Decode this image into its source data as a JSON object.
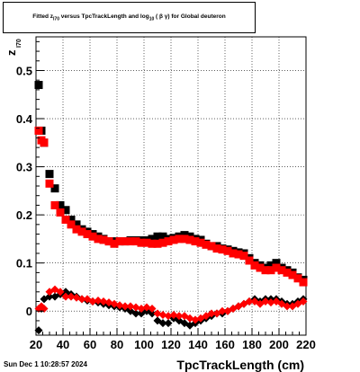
{
  "title": {
    "prefix": "Fitted  z",
    "prefix_sub": "I70",
    "middle": "  versus TpcTrackLength and log",
    "middle_sub": "10",
    "suffix": " ( β γ) for Global deuteron"
  },
  "stamp": "Sun Dec  1 10:28:57 2024",
  "colors": {
    "series_black": "#000000",
    "series_red": "#ff0000",
    "grid": "#000000"
  },
  "chart_data": {
    "type": "scatter",
    "xlabel": "TpcTrackLength (cm)",
    "ylabel_main": "z",
    "ylabel_sub": "I70",
    "xlim": [
      20,
      220
    ],
    "ylim": [
      -0.05,
      0.57
    ],
    "xticks": [
      20,
      40,
      60,
      80,
      100,
      120,
      140,
      160,
      180,
      200,
      220
    ],
    "yticks": [
      0,
      0.1,
      0.2,
      0.3,
      0.4,
      0.5
    ],
    "ytick_labels": [
      "0",
      "0.1",
      "0.2",
      "0.3",
      "0.4",
      "0.5"
    ],
    "grid": true,
    "series": [
      {
        "marker": "square",
        "color": "black",
        "x": [
          22,
          24,
          26,
          30,
          34,
          38,
          42,
          46,
          50,
          54,
          58,
          62,
          66,
          70,
          74,
          78,
          82,
          86,
          90,
          94,
          98,
          102,
          106,
          110,
          114,
          118,
          122,
          126,
          130,
          134,
          138,
          142,
          146,
          150,
          154,
          158,
          162,
          166,
          170,
          174,
          178,
          182,
          186,
          190,
          194,
          198,
          202,
          206,
          210,
          214,
          218
        ],
        "y": [
          0.47,
          0.375,
          0.35,
          0.285,
          0.255,
          0.22,
          0.21,
          0.19,
          0.18,
          0.17,
          0.165,
          0.16,
          0.155,
          0.15,
          0.145,
          0.145,
          0.145,
          0.145,
          0.147,
          0.147,
          0.147,
          0.147,
          0.15,
          0.155,
          0.155,
          0.15,
          0.152,
          0.155,
          0.158,
          0.155,
          0.15,
          0.148,
          0.14,
          0.135,
          0.135,
          0.13,
          0.128,
          0.125,
          0.122,
          0.12,
          0.11,
          0.1,
          0.095,
          0.09,
          0.095,
          0.1,
          0.09,
          0.085,
          0.08,
          0.07,
          0.065
        ]
      },
      {
        "marker": "square",
        "color": "red",
        "x": [
          22,
          24,
          26,
          30,
          34,
          38,
          42,
          46,
          50,
          54,
          58,
          62,
          66,
          70,
          74,
          78,
          82,
          86,
          90,
          94,
          98,
          102,
          106,
          110,
          114,
          118,
          122,
          126,
          130,
          134,
          138,
          142,
          146,
          150,
          154,
          158,
          162,
          166,
          170,
          174,
          178,
          182,
          186,
          190,
          194,
          198,
          202,
          206,
          210,
          214,
          218
        ],
        "y": [
          0.375,
          0.355,
          0.35,
          0.265,
          0.22,
          0.205,
          0.19,
          0.18,
          0.17,
          0.165,
          0.16,
          0.155,
          0.15,
          0.148,
          0.145,
          0.14,
          0.145,
          0.145,
          0.145,
          0.145,
          0.142,
          0.142,
          0.14,
          0.14,
          0.142,
          0.145,
          0.148,
          0.15,
          0.15,
          0.148,
          0.145,
          0.142,
          0.138,
          0.135,
          0.13,
          0.128,
          0.125,
          0.12,
          0.118,
          0.115,
          0.105,
          0.095,
          0.09,
          0.085,
          0.085,
          0.09,
          0.085,
          0.08,
          0.075,
          0.068,
          0.06
        ]
      },
      {
        "marker": "diamond",
        "color": "black",
        "x": [
          22,
          24,
          26,
          30,
          34,
          38,
          42,
          46,
          50,
          54,
          58,
          62,
          66,
          70,
          74,
          78,
          82,
          86,
          90,
          94,
          98,
          102,
          106,
          110,
          114,
          118,
          122,
          126,
          130,
          134,
          138,
          142,
          146,
          150,
          154,
          158,
          162,
          166,
          170,
          174,
          178,
          182,
          186,
          190,
          194,
          198,
          202,
          206,
          210,
          214,
          218
        ],
        "y": [
          -0.04,
          0.005,
          0.025,
          0.03,
          0.03,
          0.035,
          0.04,
          0.035,
          0.03,
          0.025,
          0.022,
          0.02,
          0.018,
          0.015,
          0.012,
          0.01,
          0.008,
          0.005,
          0.0,
          -0.005,
          -0.005,
          0.0,
          -0.005,
          -0.02,
          -0.025,
          -0.025,
          -0.015,
          -0.02,
          -0.025,
          -0.03,
          -0.025,
          -0.02,
          -0.015,
          -0.01,
          -0.005,
          -0.005,
          0.0,
          0.005,
          0.01,
          0.015,
          0.02,
          0.025,
          0.02,
          0.025,
          0.025,
          0.025,
          0.02,
          0.015,
          0.015,
          0.02,
          0.025
        ]
      },
      {
        "marker": "diamond",
        "color": "red",
        "x": [
          22,
          24,
          26,
          30,
          34,
          38,
          42,
          46,
          50,
          54,
          58,
          62,
          66,
          70,
          74,
          78,
          82,
          86,
          90,
          94,
          98,
          102,
          106,
          110,
          114,
          118,
          122,
          126,
          130,
          134,
          138,
          142,
          146,
          150,
          154,
          158,
          162,
          166,
          170,
          174,
          178,
          182,
          186,
          190,
          194,
          198,
          202,
          206,
          210,
          214,
          218
        ],
        "y": [
          0.005,
          0.01,
          0.005,
          0.04,
          0.045,
          0.04,
          0.03,
          0.03,
          0.028,
          0.025,
          0.025,
          0.02,
          0.022,
          0.02,
          0.018,
          0.015,
          0.012,
          0.01,
          0.01,
          0.008,
          0.005,
          0.008,
          0.005,
          -0.005,
          -0.008,
          -0.01,
          -0.008,
          -0.01,
          -0.01,
          -0.015,
          -0.018,
          -0.015,
          -0.01,
          -0.005,
          -0.005,
          0.0,
          0.0,
          0.005,
          0.01,
          0.015,
          0.02,
          0.02,
          0.015,
          0.02,
          0.018,
          0.02,
          0.015,
          0.01,
          0.01,
          0.015,
          0.02
        ]
      }
    ]
  }
}
